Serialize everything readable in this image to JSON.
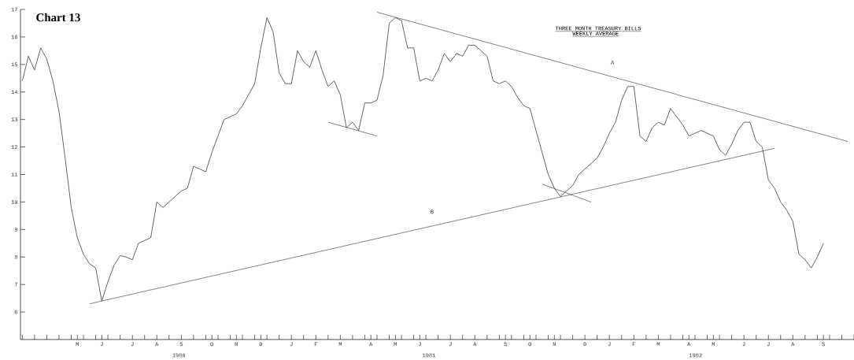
{
  "chart_data": {
    "type": "line",
    "title": "Chart 13",
    "subtitle": "THREE MONTH TREASURY BILLS",
    "annotations": [
      "WEEKLY AVERAGE",
      "1980",
      "1981",
      "1982"
    ],
    "ylim": [
      5,
      17
    ],
    "yticks": [
      6,
      7,
      8,
      9,
      10,
      11,
      12,
      13,
      14,
      15,
      16,
      17
    ],
    "categories": [
      null,
      null,
      null,
      null,
      null,
      null,
      null,
      null,
      null,
      "M",
      null,
      null,
      null,
      "J",
      null,
      null,
      null,
      null,
      "J",
      null,
      null,
      null,
      "A",
      null,
      null,
      null,
      "S",
      null,
      null,
      null,
      null,
      "O",
      null,
      null,
      null,
      "N",
      null,
      null,
      null,
      "D",
      null,
      null,
      null,
      null,
      "J",
      null,
      null,
      null,
      "F",
      null,
      null,
      null,
      "M",
      null,
      null,
      null,
      null,
      "A",
      null,
      null,
      null,
      "M",
      null,
      null,
      null,
      "J",
      null,
      null,
      null,
      null,
      "J",
      null,
      null,
      null,
      "A",
      null,
      null,
      null,
      null,
      "S",
      null,
      null,
      null,
      "O",
      null,
      null,
      null,
      "N",
      null,
      null,
      null,
      null,
      "D",
      null,
      null,
      null,
      "J",
      null,
      null,
      null,
      "F",
      null,
      null,
      null,
      "M",
      null,
      null,
      null,
      null,
      "A",
      null,
      null,
      null,
      "M",
      null,
      null,
      null,
      null,
      "J",
      null,
      null,
      null,
      "J",
      null,
      null,
      null,
      "A",
      null,
      null,
      null,
      null,
      "S",
      null,
      null,
      null,
      null,
      null
    ],
    "series": [
      {
        "color": "#222222",
        "values": [
          14.4,
          15.3,
          14.8,
          15.6,
          15.2,
          14.4,
          13.3,
          11.6,
          9.8,
          8.7,
          8.1,
          7.75,
          7.6,
          6.4,
          7.1,
          7.7,
          8.05,
          8.0,
          7.9,
          8.5,
          8.6,
          8.7,
          10.0,
          9.8,
          10.0,
          10.2,
          10.4,
          10.5,
          11.3,
          11.2,
          11.1,
          11.8,
          12.4,
          13.0,
          13.1,
          13.2,
          13.5,
          13.9,
          14.3,
          15.6,
          16.7,
          16.2,
          14.7,
          14.3,
          14.3,
          15.5,
          15.1,
          14.9,
          15.5,
          14.8,
          14.2,
          14.4,
          13.9,
          12.7,
          12.9,
          12.6,
          13.6,
          13.6,
          13.7,
          14.6,
          16.5,
          16.7,
          16.6,
          15.6,
          15.6,
          14.4,
          14.5,
          14.4,
          14.8,
          15.4,
          15.1,
          15.4,
          15.3,
          15.7,
          15.7,
          15.5,
          15.3,
          14.4,
          14.3,
          14.4,
          14.2,
          13.8,
          13.5,
          13.4,
          12.6,
          11.8,
          11.0,
          10.5,
          10.2,
          10.4,
          10.6,
          11.0,
          11.2,
          11.4,
          11.6,
          12.0,
          12.5,
          12.9,
          13.7,
          14.2,
          14.2,
          12.4,
          12.2,
          12.7,
          12.9,
          12.8,
          13.4,
          13.1,
          12.8,
          12.4,
          12.5,
          12.6,
          12.5,
          12.4,
          11.9,
          11.7,
          12.1,
          12.6,
          12.9,
          12.9,
          12.2,
          12.0,
          10.8,
          10.5,
          10.0,
          9.7,
          9.3,
          8.1,
          7.9,
          7.6,
          8.0,
          8.5,
          null,
          null,
          null,
          null,
          null
        ]
      },
      {
        "type": "line",
        "name": "A",
        "color": "#333333",
        "values": [
          null,
          null,
          null,
          null,
          null,
          null,
          null,
          null,
          null,
          null,
          null,
          null,
          null,
          null,
          null,
          null,
          null,
          null,
          null,
          null,
          null,
          null,
          null,
          null,
          null,
          null,
          null,
          null,
          null,
          null,
          null,
          null,
          null,
          null,
          null,
          null,
          null,
          null,
          null,
          null,
          null,
          null,
          null,
          null,
          null,
          null,
          null,
          null,
          null,
          null,
          null,
          null,
          null,
          null,
          null,
          null,
          null,
          null,
          16.9,
          null,
          null,
          null,
          null,
          null,
          null,
          null,
          null,
          null,
          null,
          null,
          null,
          null,
          null,
          null,
          null,
          null,
          null,
          null,
          null,
          null,
          null,
          null,
          null,
          null,
          null,
          null,
          null,
          null,
          null,
          null,
          null,
          null,
          null,
          null,
          null,
          null,
          null,
          null,
          null,
          null,
          null,
          null,
          null,
          null,
          null,
          null,
          null,
          null,
          null,
          null,
          null,
          null,
          null,
          null,
          null,
          null,
          null,
          null,
          null,
          null,
          null,
          null,
          null,
          null,
          null,
          null,
          null,
          null,
          null,
          null,
          null,
          null,
          null,
          null,
          null,
          12.2,
          null
        ]
      },
      {
        "type": "line",
        "name": "B",
        "color": "#333333",
        "values": [
          null,
          null,
          null,
          null,
          null,
          null,
          null,
          null,
          null,
          null,
          null,
          6.3,
          null,
          null,
          null,
          null,
          null,
          null,
          null,
          null,
          null,
          null,
          null,
          null,
          null,
          null,
          null,
          null,
          null,
          null,
          null,
          null,
          null,
          null,
          null,
          null,
          null,
          null,
          null,
          null,
          null,
          null,
          null,
          null,
          null,
          null,
          null,
          null,
          null,
          null,
          null,
          null,
          null,
          null,
          null,
          null,
          null,
          null,
          null,
          null,
          null,
          null,
          null,
          null,
          null,
          null,
          null,
          null,
          null,
          null,
          null,
          null,
          null,
          null,
          null,
          null,
          null,
          null,
          null,
          null,
          null,
          null,
          null,
          null,
          null,
          null,
          null,
          null,
          null,
          null,
          null,
          null,
          null,
          null,
          null,
          null,
          null,
          null,
          null,
          null,
          null,
          null,
          null,
          null,
          null,
          null,
          null,
          null,
          null,
          null,
          null,
          null,
          null,
          null,
          null,
          null,
          null,
          null,
          null,
          null,
          null,
          null,
          null,
          11.95,
          null,
          null,
          null,
          null,
          null,
          null,
          null,
          null,
          null,
          null,
          null,
          null,
          null
        ]
      },
      {
        "type": "line",
        "color": "#333333",
        "values": [
          null,
          null,
          null,
          null,
          null,
          null,
          null,
          null,
          null,
          null,
          null,
          null,
          null,
          null,
          null,
          null,
          null,
          null,
          null,
          null,
          null,
          null,
          null,
          null,
          null,
          null,
          null,
          null,
          null,
          null,
          null,
          null,
          null,
          null,
          null,
          null,
          null,
          null,
          null,
          null,
          null,
          null,
          null,
          null,
          null,
          null,
          null,
          null,
          null,
          null,
          12.9,
          null,
          null,
          null,
          null,
          null,
          null,
          null,
          12.4,
          null,
          null,
          null,
          null,
          null,
          null,
          null,
          null,
          null,
          null,
          null,
          null,
          null,
          null,
          null,
          null,
          null,
          null,
          null,
          null,
          null,
          null,
          null,
          null,
          null,
          null,
          null,
          null,
          null,
          null,
          null,
          null,
          null,
          null,
          null,
          null,
          null,
          null,
          null,
          null,
          null,
          null,
          null,
          null,
          null,
          null,
          null,
          null,
          null,
          null,
          null,
          null,
          null,
          null,
          null,
          null,
          null,
          null,
          null,
          null,
          null,
          null,
          null,
          null,
          null,
          null,
          null,
          null,
          null,
          null,
          null,
          null,
          null,
          null,
          null,
          null,
          null,
          null
        ]
      },
      {
        "type": "line",
        "color": "#333333",
        "values": [
          null,
          null,
          null,
          null,
          null,
          null,
          null,
          null,
          null,
          null,
          null,
          null,
          null,
          null,
          null,
          null,
          null,
          null,
          null,
          null,
          null,
          null,
          null,
          null,
          null,
          null,
          null,
          null,
          null,
          null,
          null,
          null,
          null,
          null,
          null,
          null,
          null,
          null,
          null,
          null,
          null,
          null,
          null,
          null,
          null,
          null,
          null,
          null,
          null,
          null,
          null,
          null,
          null,
          null,
          null,
          null,
          null,
          null,
          null,
          null,
          null,
          null,
          null,
          null,
          null,
          null,
          null,
          null,
          null,
          null,
          null,
          null,
          null,
          null,
          null,
          null,
          null,
          null,
          null,
          null,
          null,
          null,
          null,
          null,
          null,
          10.65,
          null,
          null,
          null,
          null,
          null,
          null,
          null,
          10.0,
          null,
          null,
          null,
          null,
          null,
          null,
          null,
          null,
          null,
          null,
          null,
          null,
          null,
          null,
          null,
          null,
          null,
          null,
          null,
          null,
          null,
          null,
          null,
          null,
          null,
          null,
          null,
          null,
          null,
          null,
          null,
          null,
          null,
          null,
          null,
          null,
          null,
          null,
          null,
          null,
          null,
          null,
          null
        ]
      }
    ]
  }
}
